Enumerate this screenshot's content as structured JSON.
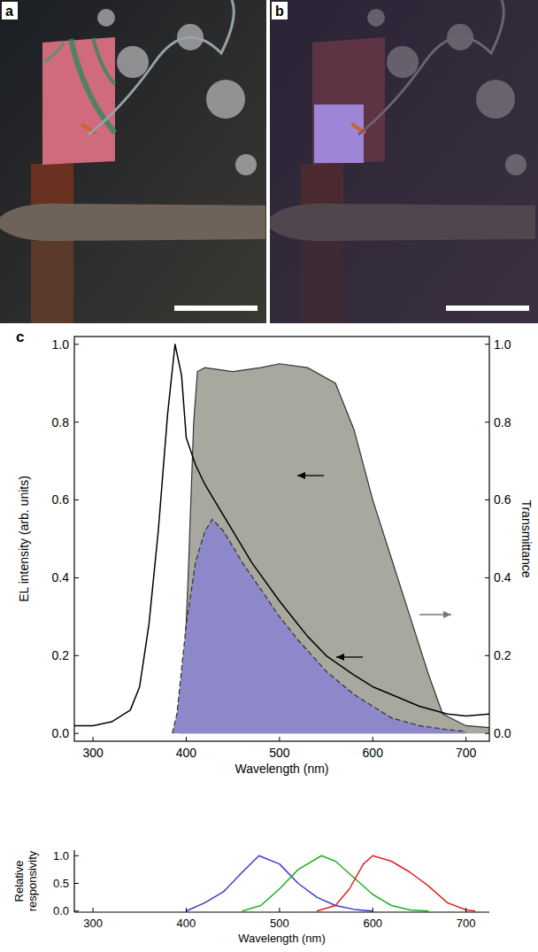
{
  "photos": [
    {
      "panel": "a"
    },
    {
      "panel": "b"
    }
  ],
  "chart_data": [
    {
      "type": "line",
      "panel": "c",
      "xlabel": "Wavelength (nm)",
      "ylabel": "EL intensity (arb. units)",
      "y2label": "Transmittance",
      "xlim": [
        280,
        725
      ],
      "xticks": [
        300,
        400,
        500,
        600,
        700
      ],
      "ylim": [
        -0.02,
        1.02
      ],
      "yticks": [
        {
          "value": 0,
          "label": "0.0"
        },
        0.2,
        0.4,
        0.6,
        0.8,
        {
          "value": 1,
          "label": "1.0"
        }
      ],
      "y2lim": [
        -0.02,
        1.02
      ],
      "y2ticks": [
        {
          "value": 0,
          "label": "0.0"
        },
        0.2,
        0.4,
        0.6,
        0.8,
        {
          "value": 1,
          "label": "1.0"
        }
      ],
      "series": [
        {
          "type": "area",
          "axis": "y2",
          "color": "#a9a89f",
          "line_style": "solid",
          "x": [
            395,
            402,
            408,
            412,
            420,
            450,
            480,
            500,
            530,
            560,
            580,
            600,
            620,
            640,
            660,
            675,
            700,
            725
          ],
          "values": [
            0,
            0.4,
            0.8,
            0.93,
            0.94,
            0.93,
            0.94,
            0.95,
            0.94,
            0.9,
            0.78,
            0.6,
            0.45,
            0.3,
            0.15,
            0.05,
            0.02,
            0.015
          ]
        },
        {
          "type": "area",
          "color": "#8c88c9",
          "line_style": "dashed",
          "x": [
            385,
            390,
            400,
            410,
            420,
            428,
            440,
            460,
            480,
            500,
            520,
            550,
            580,
            600,
            620,
            650,
            680,
            700
          ],
          "values": [
            0,
            0.05,
            0.28,
            0.44,
            0.52,
            0.55,
            0.52,
            0.44,
            0.37,
            0.3,
            0.24,
            0.16,
            0.1,
            0.07,
            0.04,
            0.02,
            0.01,
            0.005
          ]
        },
        {
          "type": "line",
          "color": "#000000",
          "line_style": "solid",
          "x": [
            280,
            300,
            320,
            340,
            350,
            360,
            370,
            380,
            388,
            395,
            400,
            410,
            420,
            430,
            450,
            470,
            500,
            520,
            530,
            550,
            580,
            600,
            620,
            650,
            680,
            700,
            725
          ],
          "values": [
            0.02,
            0.02,
            0.03,
            0.06,
            0.12,
            0.28,
            0.52,
            0.82,
            1.0,
            0.92,
            0.76,
            0.69,
            0.64,
            0.6,
            0.52,
            0.44,
            0.34,
            0.28,
            0.25,
            0.2,
            0.15,
            0.12,
            0.1,
            0.07,
            0.05,
            0.045,
            0.05
          ]
        }
      ]
    },
    {
      "type": "line",
      "xlabel": "Wavelength (nm)",
      "ylabel": "Relative responsivity",
      "xlim": [
        280,
        725
      ],
      "xticks": [
        300,
        400,
        500,
        600,
        700
      ],
      "ylim": [
        -0.02,
        1.1
      ],
      "yticks": [
        {
          "value": 0,
          "label": "0.0"
        },
        0.5,
        {
          "value": 1,
          "label": "1.0"
        }
      ],
      "series": [
        {
          "type": "line",
          "color": "#3a3acc",
          "line_style": "solid",
          "x": [
            400,
            420,
            440,
            460,
            478,
            500,
            520,
            540,
            560,
            580,
            600
          ],
          "values": [
            0,
            0.15,
            0.35,
            0.7,
            1.0,
            0.85,
            0.5,
            0.25,
            0.1,
            0.03,
            0
          ]
        },
        {
          "type": "line",
          "color": "#22b022",
          "line_style": "solid",
          "x": [
            460,
            480,
            500,
            520,
            545,
            560,
            580,
            600,
            620,
            640,
            660
          ],
          "values": [
            0,
            0.1,
            0.4,
            0.75,
            1.0,
            0.9,
            0.6,
            0.3,
            0.1,
            0.02,
            0
          ]
        },
        {
          "type": "line",
          "color": "#e02020",
          "line_style": "solid",
          "x": [
            540,
            560,
            575,
            590,
            600,
            620,
            640,
            660,
            680,
            700,
            710
          ],
          "values": [
            0,
            0.1,
            0.4,
            0.85,
            1.0,
            0.9,
            0.7,
            0.45,
            0.15,
            0.02,
            0
          ]
        }
      ]
    }
  ]
}
